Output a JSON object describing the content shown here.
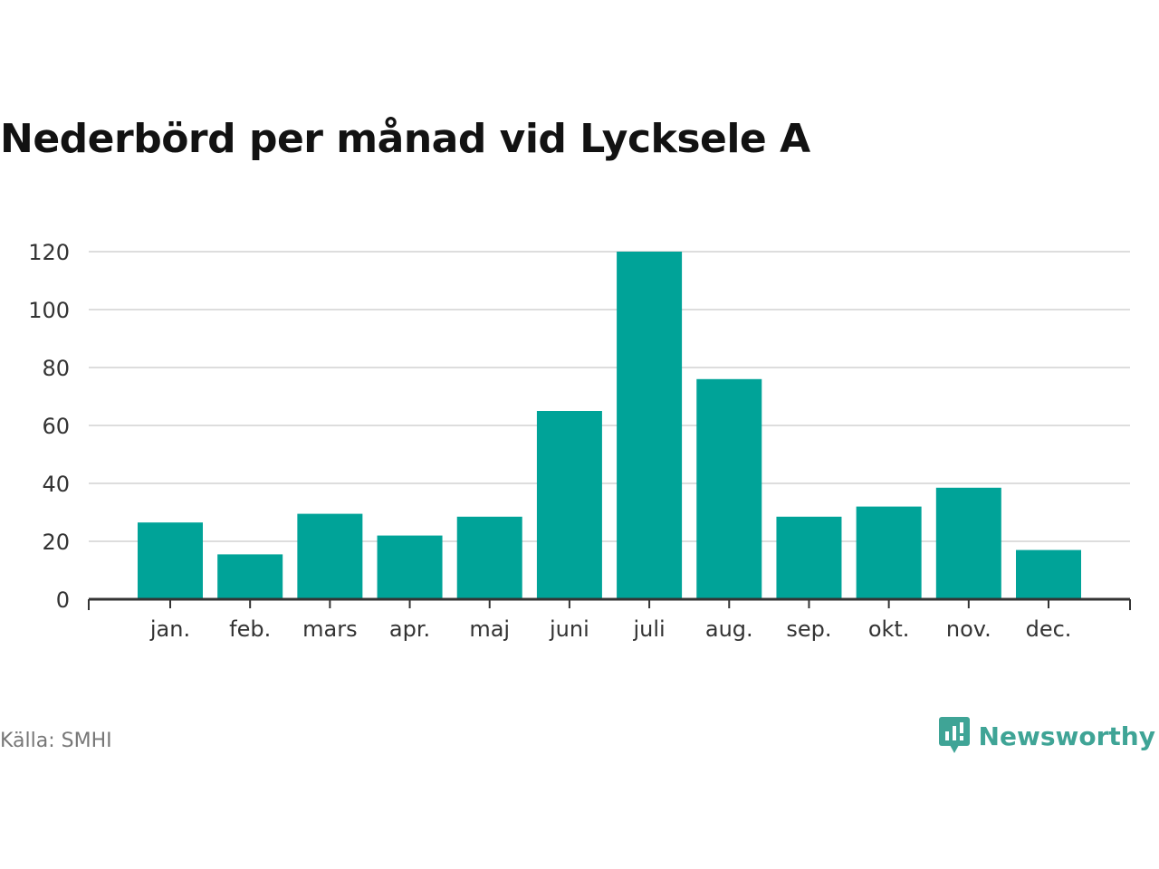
{
  "colors": {
    "bar": "#00a398",
    "grid": "#dddddd",
    "axis": "#333333",
    "text": "#333333",
    "brand": "#3fa496"
  },
  "chart_data": {
    "type": "bar",
    "title": "Nederbörd per månad vid Lycksele A",
    "categories": [
      "jan.",
      "feb.",
      "mars",
      "apr.",
      "maj",
      "juni",
      "juli",
      "aug.",
      "sep.",
      "okt.",
      "nov.",
      "dec."
    ],
    "values": [
      26.5,
      15.5,
      29.5,
      22,
      28.5,
      65,
      120,
      76,
      28.5,
      32,
      38.5,
      17
    ],
    "yticks": [
      0,
      20,
      40,
      60,
      80,
      100,
      120
    ],
    "ylim": [
      0,
      120
    ],
    "grid": true,
    "legend": "none"
  },
  "footer": {
    "source": "Källa: SMHI",
    "brand": "Newsworthy"
  },
  "icons": {
    "brand_logo": "newsworthy-logo-icon"
  }
}
